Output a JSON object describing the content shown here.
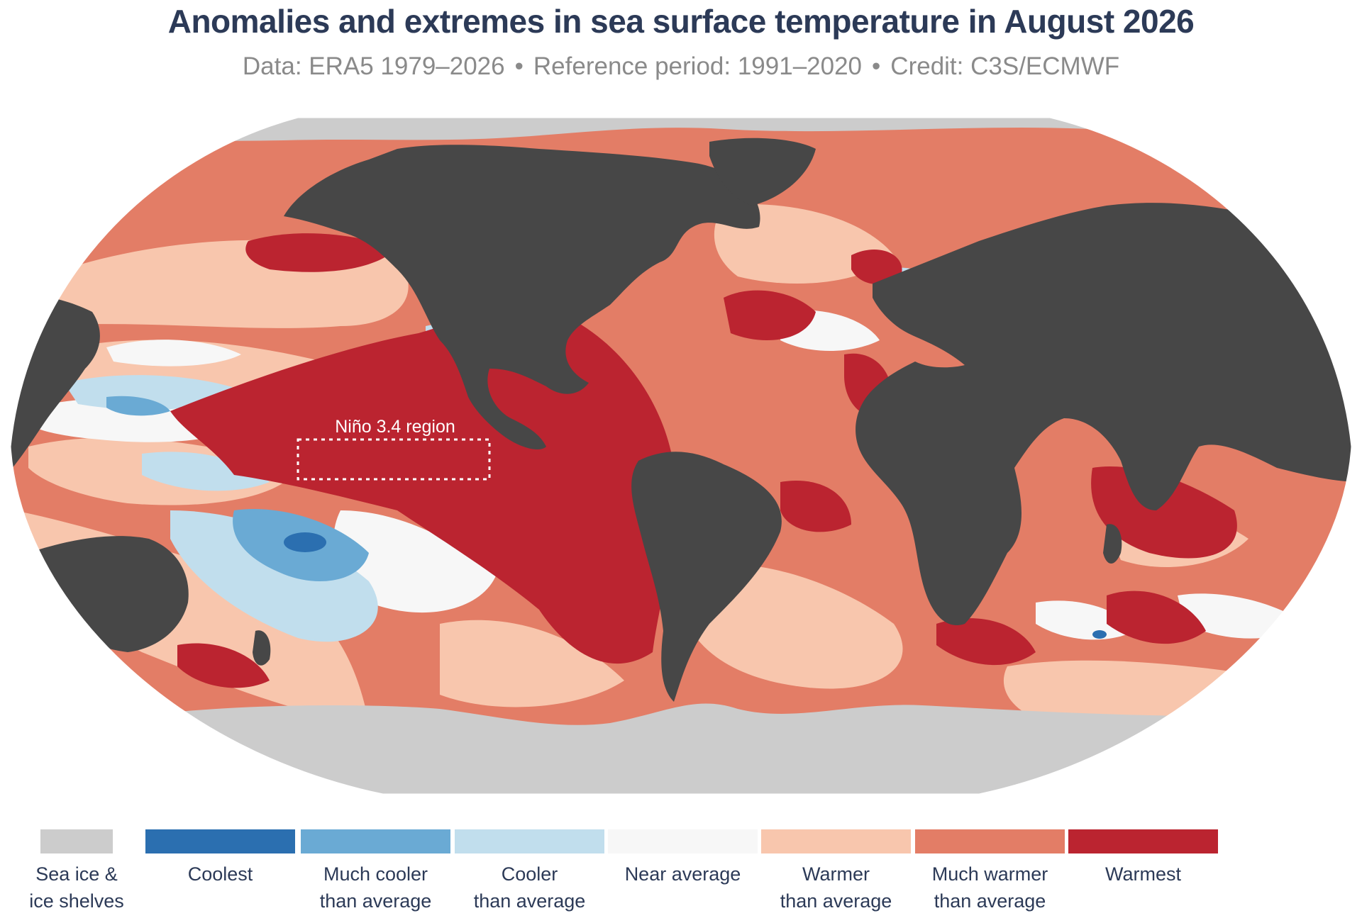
{
  "title": "Anomalies and extremes in sea surface temperature in August 2026",
  "subtitle": {
    "data": "Data: ERA5 1979–2026",
    "reference": "Reference period: 1991–2020",
    "credit": "Credit: C3S/ECMWF",
    "separator": "•"
  },
  "map": {
    "projection": "Robinson",
    "annotation": "Niño 3.4 region",
    "colors": {
      "land": "#474747",
      "sea_ice": "#cccccc",
      "coolest": "#2b6fb0",
      "much_cooler": "#6aaad4",
      "cooler": "#c1deed",
      "near_average": "#f7f7f7",
      "warmer": "#f8c6ad",
      "much_warmer": "#e37d66",
      "warmest": "#bb2430"
    }
  },
  "legend": [
    {
      "line1": "Sea ice &",
      "line2": "ice shelves",
      "color": "#cccccc"
    },
    {
      "line1": "Coolest",
      "line2": "",
      "color": "#2b6fb0"
    },
    {
      "line1": "Much cooler",
      "line2": "than average",
      "color": "#6aaad4"
    },
    {
      "line1": "Cooler",
      "line2": "than average",
      "color": "#c1deed"
    },
    {
      "line1": "Near average",
      "line2": "",
      "color": "#f7f7f7"
    },
    {
      "line1": "Warmer",
      "line2": "than average",
      "color": "#f8c6ad"
    },
    {
      "line1": "Much warmer",
      "line2": "than average",
      "color": "#e37d66"
    },
    {
      "line1": "Warmest",
      "line2": "",
      "color": "#bb2430"
    }
  ]
}
